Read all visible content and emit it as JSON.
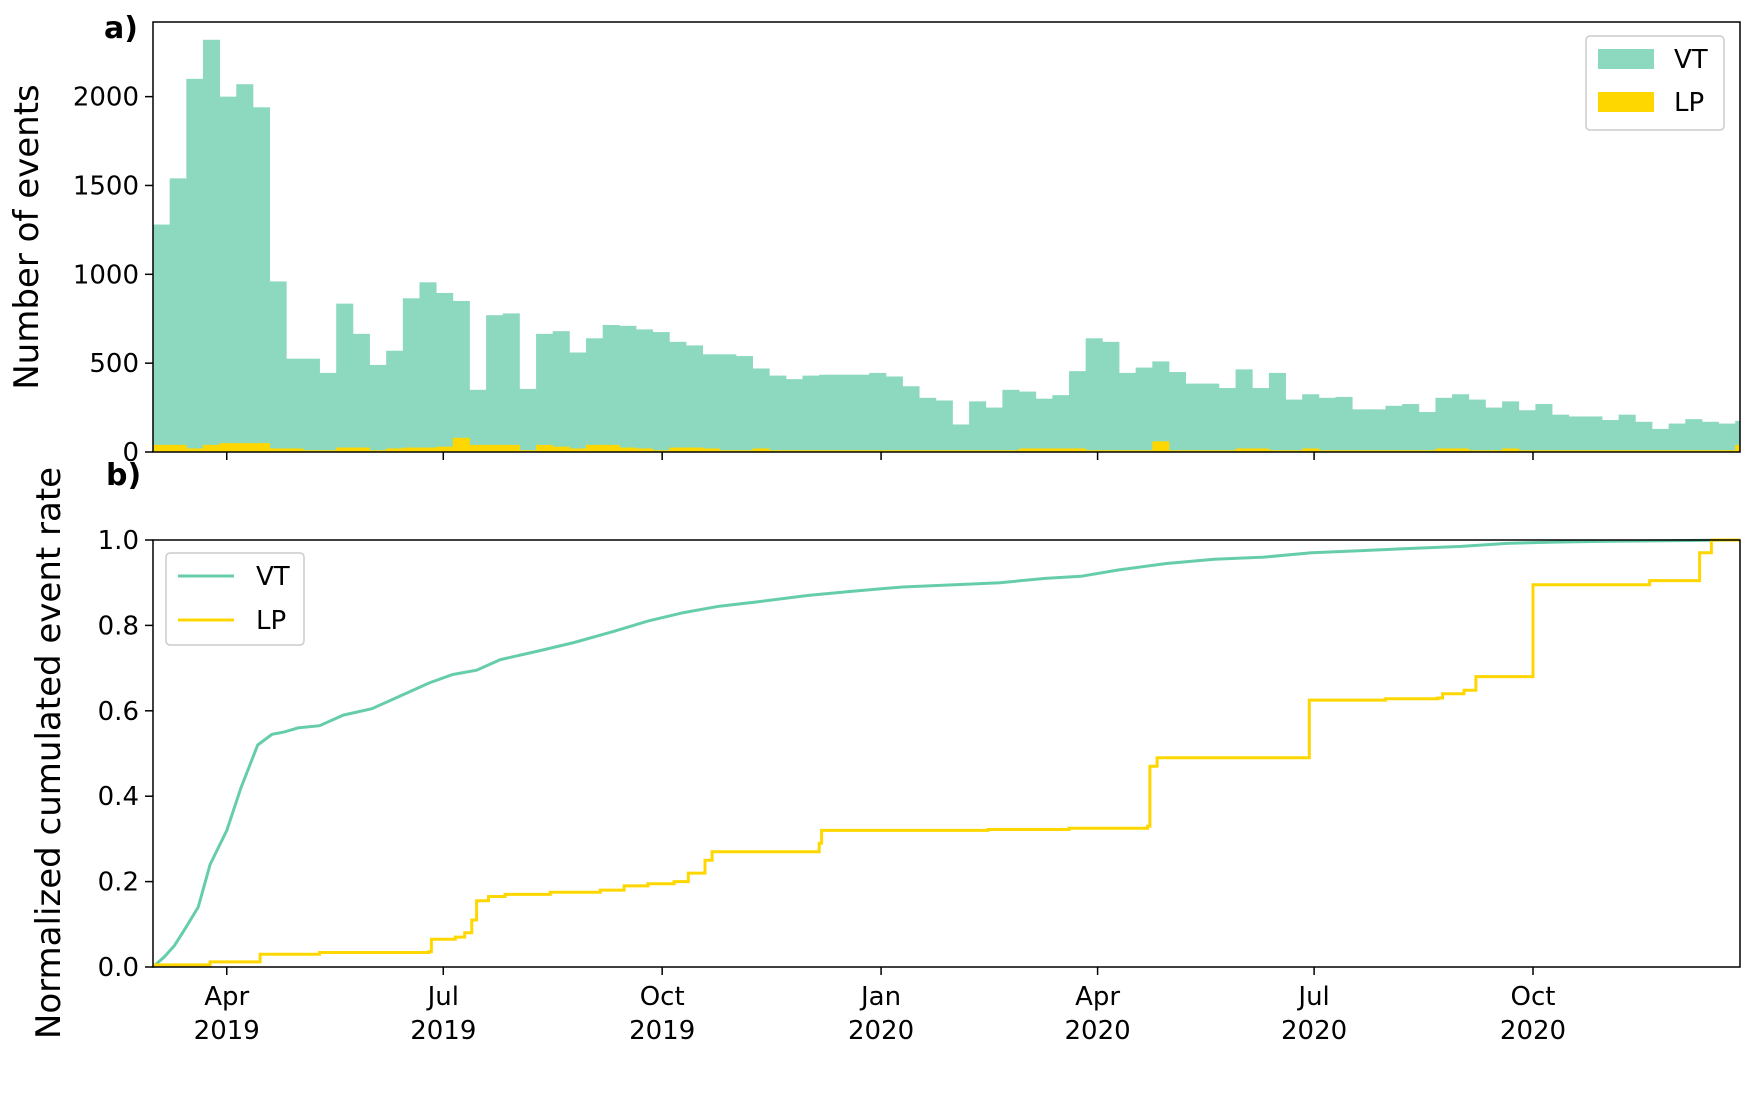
{
  "colors": {
    "vt": "#8dd9bf",
    "vt_line": "#66cdaa",
    "lp": "#ffd700",
    "axis": "#000000",
    "legend_frame": "#cccccc"
  },
  "chart_data": [
    {
      "type": "bar",
      "panel_letter": "a)",
      "ylabel": "Number of events",
      "ylim": [
        0,
        2420
      ],
      "xlim": [
        "2019-03-01",
        "2020-12-27"
      ],
      "yticks": [
        0,
        500,
        1000,
        1500,
        2000
      ],
      "ytick_labels": [
        "0",
        "500",
        "1000",
        "1500",
        "2000"
      ],
      "xtick_labels_shown": false,
      "grid": false,
      "legend": {
        "position": "top-right",
        "entries": [
          "VT",
          "LP"
        ]
      },
      "bin_days": 7,
      "bin_start": "2019-03-01",
      "series": [
        {
          "name": "VT",
          "values": [
            1280,
            1540,
            2100,
            2320,
            2000,
            2070,
            1940,
            960,
            525,
            525,
            445,
            835,
            665,
            490,
            570,
            865,
            955,
            895,
            850,
            350,
            770,
            780,
            355,
            665,
            680,
            560,
            640,
            715,
            710,
            690,
            675,
            620,
            600,
            550,
            550,
            540,
            470,
            430,
            410,
            430,
            435,
            435,
            435,
            445,
            425,
            370,
            305,
            290,
            155,
            285,
            250,
            350,
            340,
            300,
            320,
            455,
            640,
            620,
            445,
            475,
            510,
            450,
            385,
            385,
            360,
            465,
            360,
            445,
            295,
            325,
            305,
            310,
            240,
            240,
            260,
            270,
            225,
            305,
            325,
            295,
            250,
            285,
            235,
            270,
            210,
            200,
            200,
            180,
            210,
            170,
            130,
            160,
            185,
            170,
            160,
            175,
            105,
            150
          ]
        },
        {
          "name": "LP",
          "values": [
            40,
            40,
            20,
            40,
            50,
            50,
            50,
            20,
            20,
            10,
            10,
            25,
            25,
            10,
            20,
            25,
            25,
            30,
            80,
            40,
            40,
            40,
            10,
            40,
            30,
            20,
            40,
            40,
            25,
            20,
            10,
            25,
            25,
            20,
            10,
            10,
            20,
            10,
            10,
            10,
            10,
            10,
            10,
            10,
            10,
            10,
            10,
            10,
            10,
            10,
            10,
            10,
            20,
            20,
            20,
            20,
            10,
            10,
            10,
            10,
            60,
            10,
            10,
            10,
            10,
            20,
            20,
            10,
            10,
            20,
            10,
            10,
            10,
            10,
            10,
            10,
            10,
            20,
            20,
            10,
            10,
            20,
            10,
            10,
            10,
            10,
            10,
            10,
            10,
            10,
            10,
            10,
            10,
            10,
            10,
            40,
            10,
            10
          ]
        }
      ]
    },
    {
      "type": "line",
      "panel_letter": "b)",
      "ylabel": "Normalized cumulated event rate",
      "ylim": [
        0,
        1.0
      ],
      "xlim": [
        "2019-03-01",
        "2020-12-27"
      ],
      "yticks": [
        0.0,
        0.2,
        0.4,
        0.6,
        0.8,
        1.0
      ],
      "ytick_labels": [
        "0.0",
        "0.2",
        "0.4",
        "0.6",
        "0.8",
        "1.0"
      ],
      "xticks": [
        "2019-04-01",
        "2019-07-01",
        "2019-10-01",
        "2020-01-01",
        "2020-04-01",
        "2020-07-01",
        "2020-10-01"
      ],
      "xtick_labels": [
        [
          "Apr",
          "2019"
        ],
        [
          "Jul",
          "2019"
        ],
        [
          "Oct",
          "2019"
        ],
        [
          "Jan",
          "2020"
        ],
        [
          "Apr",
          "2020"
        ],
        [
          "Jul",
          "2020"
        ],
        [
          "Oct",
          "2020"
        ]
      ],
      "grid": false,
      "legend": {
        "position": "top-left",
        "entries": [
          "VT",
          "LP"
        ]
      },
      "series": [
        {
          "name": "VT",
          "x": [
            "2019-03-01",
            "2019-03-06",
            "2019-03-10",
            "2019-03-14",
            "2019-03-20",
            "2019-03-25",
            "2019-04-01",
            "2019-04-07",
            "2019-04-14",
            "2019-04-20",
            "2019-04-25",
            "2019-05-01",
            "2019-05-10",
            "2019-05-20",
            "2019-06-01",
            "2019-06-15",
            "2019-06-25",
            "2019-07-05",
            "2019-07-15",
            "2019-07-25",
            "2019-08-10",
            "2019-08-25",
            "2019-09-10",
            "2019-09-25",
            "2019-10-10",
            "2019-10-25",
            "2019-11-10",
            "2019-12-01",
            "2019-12-20",
            "2020-01-10",
            "2020-02-01",
            "2020-02-20",
            "2020-03-10",
            "2020-03-25",
            "2020-04-10",
            "2020-04-30",
            "2020-05-20",
            "2020-06-10",
            "2020-06-30",
            "2020-07-20",
            "2020-08-10",
            "2020-09-01",
            "2020-09-20",
            "2020-10-10",
            "2020-11-01",
            "2020-11-20",
            "2020-12-10",
            "2020-12-27"
          ],
          "values": [
            0.0,
            0.025,
            0.05,
            0.085,
            0.14,
            0.24,
            0.32,
            0.42,
            0.52,
            0.545,
            0.55,
            0.56,
            0.565,
            0.59,
            0.605,
            0.64,
            0.665,
            0.685,
            0.695,
            0.72,
            0.74,
            0.76,
            0.785,
            0.81,
            0.83,
            0.845,
            0.855,
            0.87,
            0.88,
            0.89,
            0.895,
            0.9,
            0.91,
            0.915,
            0.93,
            0.945,
            0.955,
            0.96,
            0.97,
            0.975,
            0.98,
            0.985,
            0.992,
            0.995,
            0.997,
            0.998,
            0.999,
            1.0
          ]
        },
        {
          "name": "LP",
          "steps": true,
          "x": [
            "2019-03-01",
            "2019-03-25",
            "2019-04-15",
            "2019-05-10",
            "2019-06-25",
            "2019-06-26",
            "2019-07-06",
            "2019-07-10",
            "2019-07-13",
            "2019-07-15",
            "2019-07-20",
            "2019-07-27",
            "2019-08-15",
            "2019-09-05",
            "2019-09-15",
            "2019-09-25",
            "2019-10-06",
            "2019-10-12",
            "2019-10-19",
            "2019-10-22",
            "2019-12-06",
            "2019-12-07",
            "2020-02-15",
            "2020-03-20",
            "2020-04-22",
            "2020-04-23",
            "2020-04-26",
            "2020-06-02",
            "2020-06-28",
            "2020-06-29",
            "2020-07-31",
            "2020-08-22",
            "2020-08-24",
            "2020-09-02",
            "2020-09-07",
            "2020-09-30",
            "2020-10-01",
            "2020-11-15",
            "2020-11-19",
            "2020-12-07",
            "2020-12-10",
            "2020-12-15",
            "2020-12-27"
          ],
          "values": [
            0.005,
            0.012,
            0.03,
            0.034,
            0.036,
            0.065,
            0.07,
            0.08,
            0.11,
            0.155,
            0.165,
            0.17,
            0.175,
            0.18,
            0.19,
            0.195,
            0.2,
            0.22,
            0.25,
            0.27,
            0.29,
            0.32,
            0.322,
            0.325,
            0.33,
            0.47,
            0.49,
            0.49,
            0.49,
            0.625,
            0.628,
            0.63,
            0.64,
            0.648,
            0.68,
            0.68,
            0.895,
            0.895,
            0.905,
            0.905,
            0.97,
            1.0,
            1.0
          ]
        }
      ]
    }
  ]
}
